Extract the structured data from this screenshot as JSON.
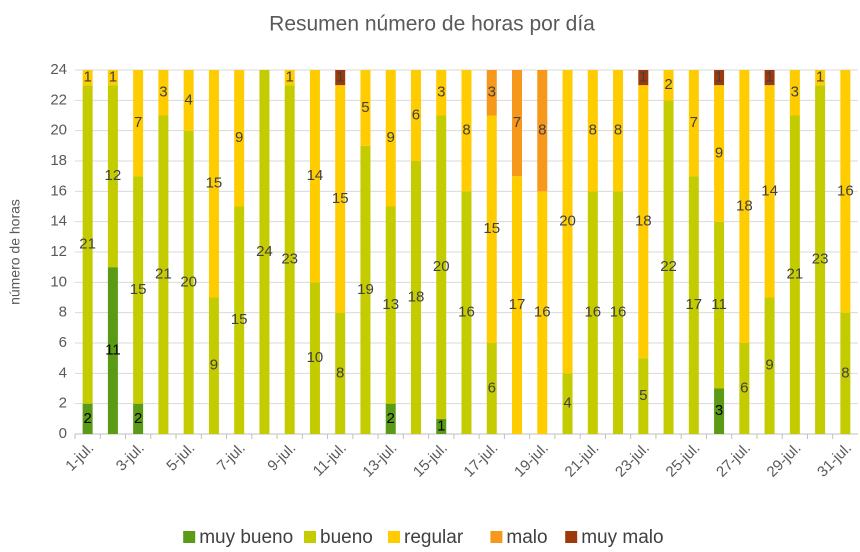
{
  "chart_data": {
    "type": "stacked_bar",
    "title": "Resumen número de horas por día",
    "y_label": "número de horas",
    "categories": [
      "1-jul.",
      null,
      "3-jul.",
      null,
      "5-jul.",
      null,
      "7-jul.",
      null,
      "9-jul.",
      null,
      "11-jul.",
      null,
      "13-jul.",
      null,
      "15-jul.",
      null,
      "17-jul.",
      null,
      "19-jul.",
      null,
      "21-jul.",
      null,
      "23-jul.",
      null,
      "25-jul.",
      null,
      "27-jul.",
      null,
      "29-jul.",
      null,
      "31-jul."
    ],
    "series": [
      {
        "name": "muy bueno",
        "color": "#5a9a14",
        "values": [
          2,
          11,
          2,
          null,
          null,
          null,
          null,
          null,
          null,
          null,
          null,
          null,
          2,
          null,
          1,
          null,
          null,
          null,
          null,
          null,
          null,
          null,
          null,
          null,
          null,
          3,
          null,
          null,
          null,
          null,
          null
        ]
      },
      {
        "name": "bueno",
        "color": "#c4cc00",
        "values": [
          21,
          12,
          15,
          21,
          20,
          9,
          15,
          24,
          23,
          10,
          8,
          19,
          13,
          18,
          20,
          16,
          6,
          null,
          null,
          4,
          16,
          16,
          5,
          22,
          17,
          11,
          6,
          9,
          21,
          23,
          8
        ]
      },
      {
        "name": "regular",
        "color": "#ffcc00",
        "values": [
          1,
          1,
          7,
          3,
          4,
          15,
          9,
          null,
          1,
          14,
          15,
          5,
          9,
          6,
          3,
          8,
          15,
          17,
          16,
          20,
          8,
          8,
          18,
          2,
          7,
          9,
          18,
          14,
          3,
          1,
          16
        ]
      },
      {
        "name": "malo",
        "color": "#f7981d",
        "values": [
          null,
          null,
          null,
          null,
          null,
          null,
          null,
          null,
          null,
          null,
          null,
          null,
          null,
          null,
          null,
          null,
          3,
          7,
          8,
          null,
          null,
          null,
          null,
          null,
          null,
          null,
          null,
          null,
          null,
          null,
          null
        ]
      },
      {
        "name": "muy malo",
        "color": "#9c3a0e",
        "values": [
          null,
          null,
          null,
          null,
          null,
          null,
          null,
          null,
          null,
          null,
          1,
          null,
          null,
          null,
          null,
          null,
          null,
          null,
          null,
          null,
          null,
          null,
          1,
          null,
          null,
          1,
          null,
          1,
          null,
          null,
          null
        ]
      }
    ],
    "ylim": [
      0,
      24
    ],
    "yticks": [
      0,
      2,
      4,
      6,
      8,
      10,
      12,
      14,
      16,
      18,
      20,
      22,
      24
    ],
    "grid": true,
    "legend": "bottom"
  }
}
